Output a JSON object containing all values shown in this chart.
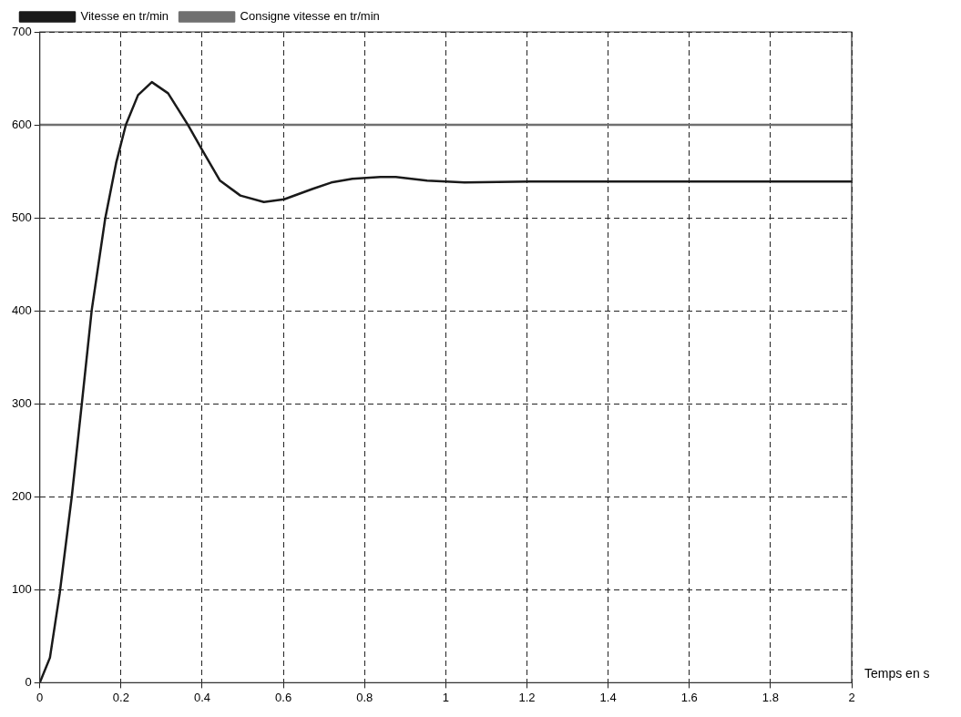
{
  "chart_data": {
    "type": "line",
    "xlabel": "Temps en s",
    "xlim": [
      0,
      2
    ],
    "xticks": [
      0,
      0.2,
      0.4,
      0.6,
      0.8,
      1,
      1.2,
      1.4,
      1.6,
      1.8,
      2
    ],
    "ylim": [
      0,
      700
    ],
    "yticks": [
      0,
      100,
      200,
      300,
      400,
      500,
      600,
      700
    ],
    "grid": true,
    "legend": "top left",
    "marker": "none",
    "line_style": "solid",
    "series": [
      {
        "name": "Vitesse en tr/min",
        "color": "#1a1a1a",
        "x": [
          0,
          0.025,
          0.049,
          0.079,
          0.104,
          0.128,
          0.161,
          0.188,
          0.212,
          0.242,
          0.276,
          0.316,
          0.365,
          0.4,
          0.444,
          0.494,
          0.552,
          0.602,
          0.671,
          0.718,
          0.77,
          0.839,
          0.877,
          0.954,
          1.047,
          1.208,
          1.6,
          2
        ],
        "values": [
          0,
          27,
          96,
          201,
          302,
          401,
          499,
          559,
          600,
          632,
          646,
          634,
          600,
          573,
          540,
          524,
          517,
          520,
          531,
          538,
          542,
          544,
          544,
          540,
          538,
          539,
          539,
          539
        ]
      },
      {
        "name": "Consigne vitesse en tr/min",
        "color": "#707070",
        "x": [
          0,
          2
        ],
        "values": [
          600,
          600
        ]
      }
    ]
  }
}
